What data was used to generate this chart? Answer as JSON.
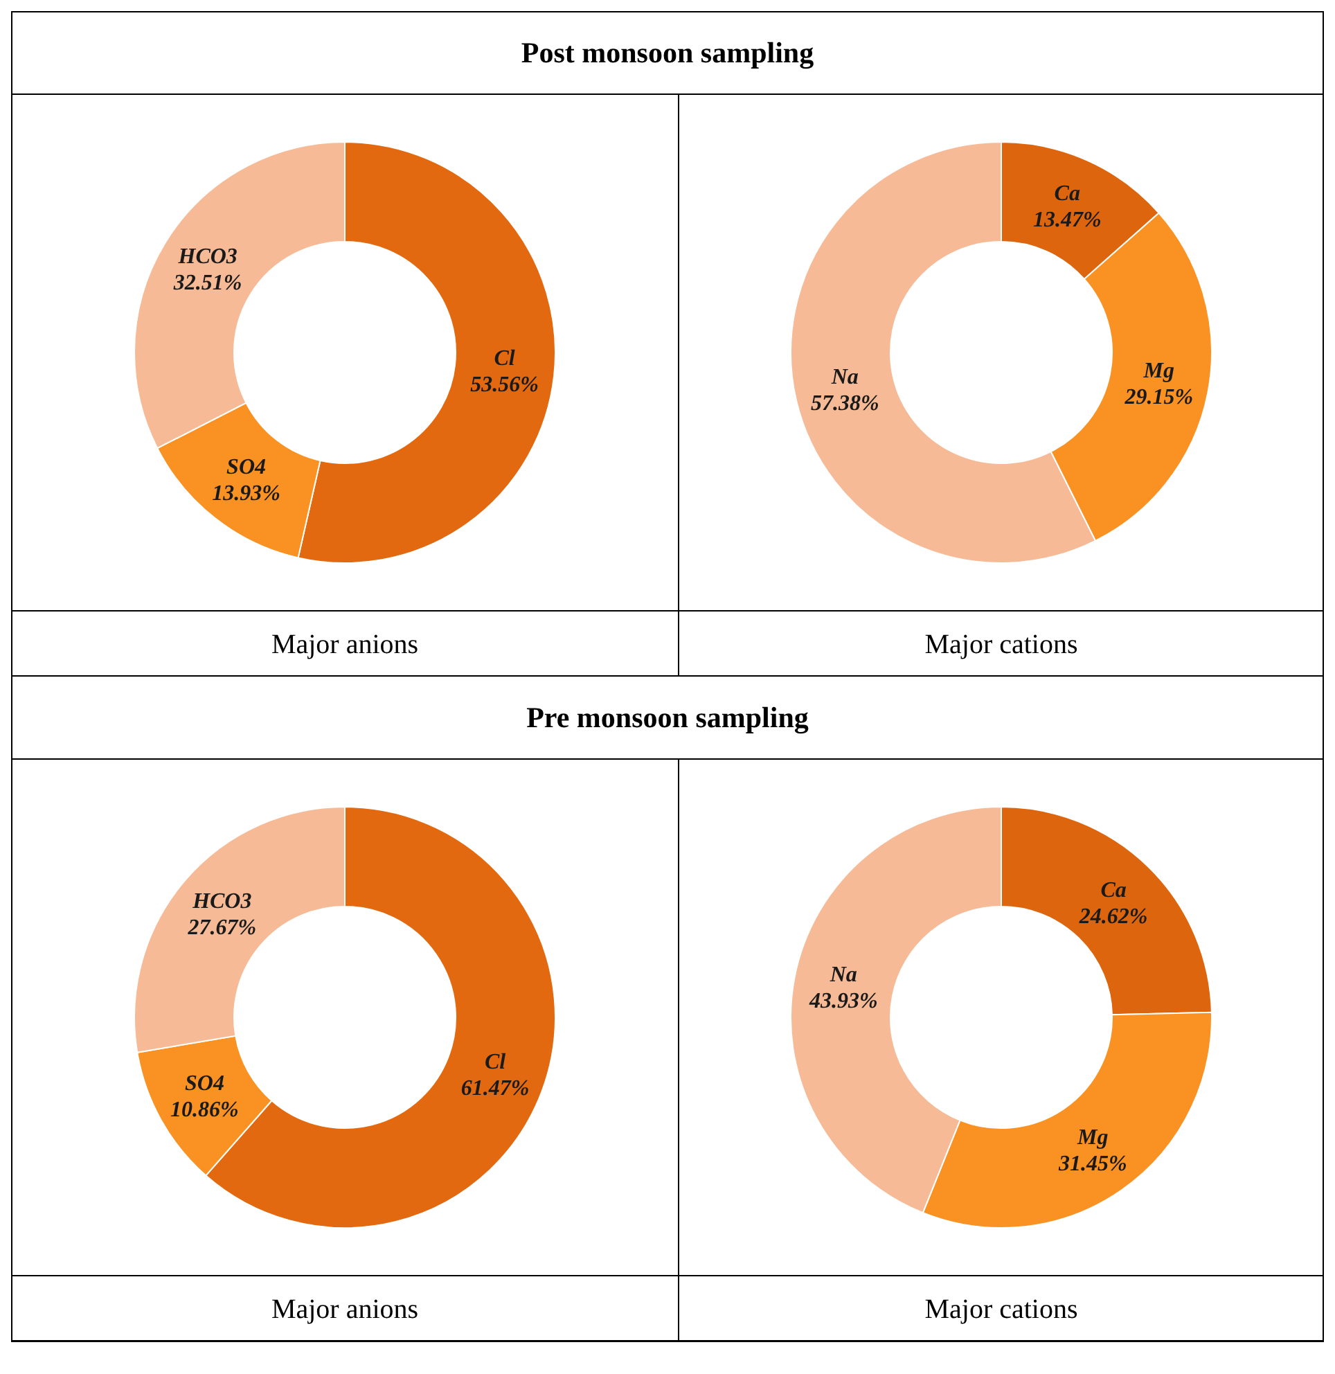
{
  "chart_data": [
    {
      "type": "donut",
      "title": "Post monsoon sampling",
      "xlabel": "Major anions",
      "categories": [
        "Cl",
        "SO4",
        "HCO3"
      ],
      "values": [
        53.56,
        13.93,
        32.51
      ],
      "value_labels": [
        "53.56%",
        "13.93%",
        "32.51%"
      ],
      "colors": [
        "#e2690f",
        "#f99222",
        "#f6bb96"
      ]
    },
    {
      "type": "donut",
      "xlabel": "Major cations",
      "categories": [
        "Ca",
        "Mg",
        "Na"
      ],
      "values": [
        13.47,
        29.15,
        57.38
      ],
      "value_labels": [
        "13.47%",
        "29.15%",
        "57.38%"
      ],
      "colors": [
        "#dd650e",
        "#f99222",
        "#f6bb96"
      ]
    },
    {
      "type": "donut",
      "title": "Pre monsoon sampling",
      "xlabel": "Major anions",
      "categories": [
        "Cl",
        "SO4",
        "HCO3"
      ],
      "values": [
        61.47,
        10.86,
        27.67
      ],
      "value_labels": [
        "61.47%",
        "10.86%",
        "27.67%"
      ],
      "colors": [
        "#e2690f",
        "#f99222",
        "#f6bb96"
      ]
    },
    {
      "type": "donut",
      "xlabel": "Major cations",
      "categories": [
        "Ca",
        "Mg",
        "Na"
      ],
      "values": [
        24.62,
        31.45,
        43.93
      ],
      "value_labels": [
        "24.62%",
        "31.45%",
        "43.93%"
      ],
      "colors": [
        "#dd650e",
        "#f99222",
        "#f6bb96"
      ]
    }
  ]
}
